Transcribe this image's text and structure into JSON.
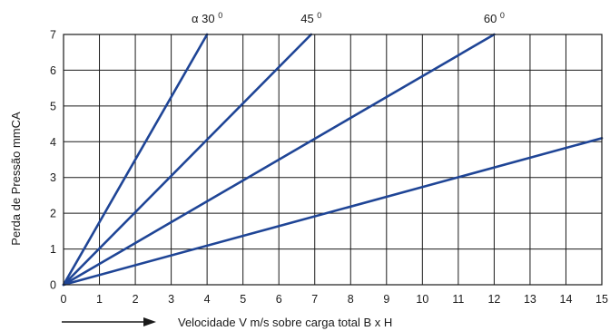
{
  "chart_data": {
    "type": "line",
    "title": "",
    "xlabel": "Velocidade V m/s sobre carga total B x H",
    "ylabel": "Perda de Pressão mmCA",
    "xlim": [
      0,
      15
    ],
    "ylim": [
      0,
      7
    ],
    "x_ticks": [
      "0",
      "1",
      "2",
      "3",
      "4",
      "5",
      "6",
      "7",
      "8",
      "9",
      "10",
      "11",
      "12",
      "13",
      "14",
      "15"
    ],
    "y_ticks": [
      "0",
      "1",
      "2",
      "3",
      "4",
      "5",
      "6",
      "7"
    ],
    "grid": true,
    "legend": "none",
    "series_color": "#1f4596",
    "series": [
      {
        "name": "α 30",
        "points": [
          [
            0,
            0
          ],
          [
            4,
            7
          ]
        ]
      },
      {
        "name": "45",
        "points": [
          [
            0,
            0
          ],
          [
            6.9,
            7
          ]
        ]
      },
      {
        "name": "60",
        "points": [
          [
            0,
            0
          ],
          [
            12,
            7
          ]
        ]
      },
      {
        "name": "",
        "points": [
          [
            0,
            0
          ],
          [
            15,
            4.1
          ]
        ]
      }
    ],
    "annotations": [
      {
        "text": "α 30",
        "superscript": "0"
      },
      {
        "text": "45",
        "superscript": "0"
      },
      {
        "text": "60",
        "superscript": "0"
      }
    ],
    "x_axis_arrow": true
  }
}
